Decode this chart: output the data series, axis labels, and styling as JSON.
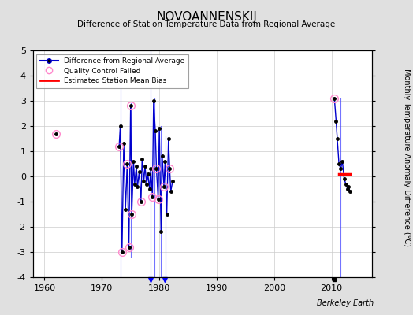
{
  "title": "NOVOANNENSKIJ",
  "subtitle": "Difference of Station Temperature Data from Regional Average",
  "ylabel": "Monthly Temperature Anomaly Difference (°C)",
  "credit": "Berkeley Earth",
  "ylim": [
    -4,
    5
  ],
  "xlim": [
    1958,
    2017
  ],
  "xticks": [
    1960,
    1970,
    1980,
    1990,
    2000,
    2010
  ],
  "yticks": [
    -4,
    -3,
    -2,
    -1,
    0,
    1,
    2,
    3,
    4,
    5
  ],
  "bg_color": "#e0e0e0",
  "plot_bg_color": "#ffffff",
  "main_line_color": "#0000cc",
  "main_dot_color": "#000000",
  "qc_fail_color": "#ff88cc",
  "bias_line_color": "#ff0000",
  "vline_color": "#4444ff",
  "segments": [
    {
      "x": [
        1962.0
      ],
      "y": [
        1.7
      ]
    },
    {
      "x": [
        1973.0,
        1973.2,
        1973.5,
        1973.8,
        1974.1,
        1974.4,
        1974.7,
        1975.0,
        1975.2,
        1975.5,
        1975.7,
        1976.0,
        1976.2,
        1976.5,
        1976.8,
        1977.0,
        1977.3,
        1977.5,
        1977.8,
        1978.0,
        1978.3,
        1978.5,
        1978.8,
        1979.0,
        1979.3,
        1979.5,
        1979.8,
        1980.0,
        1980.3,
        1980.5,
        1980.8,
        1981.0,
        1981.3,
        1981.6,
        1981.8,
        1982.0,
        1982.3
      ],
      "y": [
        1.2,
        2.0,
        -3.0,
        1.3,
        -1.3,
        0.5,
        -2.8,
        2.8,
        -1.5,
        0.6,
        -0.3,
        0.4,
        -0.4,
        0.2,
        -1.0,
        0.7,
        -0.2,
        0.4,
        -0.3,
        0.1,
        -0.5,
        0.3,
        -0.8,
        3.0,
        1.8,
        0.3,
        -0.9,
        1.9,
        -2.2,
        0.8,
        -0.4,
        0.6,
        -1.5,
        1.5,
        0.3,
        -0.6,
        -0.2
      ]
    },
    {
      "x": [
        2010.5,
        2010.8,
        2011.0,
        2011.3,
        2011.6,
        2011.9,
        2012.2,
        2012.5,
        2012.8,
        2013.0,
        2013.2
      ],
      "y": [
        3.1,
        2.2,
        1.5,
        0.5,
        0.3,
        0.6,
        -0.1,
        -0.3,
        -0.5,
        -0.4,
        -0.6
      ]
    }
  ],
  "qc_pts": [
    [
      1962.0,
      1.7
    ],
    [
      1973.0,
      1.2
    ],
    [
      1973.5,
      -3.0
    ],
    [
      1974.4,
      0.5
    ],
    [
      1974.7,
      -2.8
    ],
    [
      1975.0,
      2.8
    ],
    [
      1975.2,
      -1.5
    ],
    [
      1976.8,
      -1.0
    ],
    [
      1978.8,
      -0.8
    ],
    [
      1979.5,
      0.3
    ],
    [
      1979.8,
      -0.9
    ],
    [
      1980.8,
      -0.4
    ],
    [
      1981.8,
      0.3
    ],
    [
      2010.5,
      3.1
    ]
  ],
  "vlines": [
    [
      1973.3,
      -4.0,
      5.0
    ],
    [
      1975.1,
      -3.2,
      2.9
    ],
    [
      1978.5,
      -4.0,
      5.0
    ],
    [
      1979.1,
      -4.0,
      3.1
    ],
    [
      1980.2,
      -4.0,
      2.0
    ],
    [
      1981.1,
      -4.0,
      1.6
    ],
    [
      2011.5,
      -4.0,
      3.1
    ]
  ],
  "bias_line": [
    2011.3,
    2013.2,
    0.1
  ],
  "bottom_markers": {
    "station_move": [],
    "record_gap": [],
    "time_obs_change": [
      1978.5,
      1981.0
    ],
    "empirical_break": [
      2010.5
    ]
  }
}
